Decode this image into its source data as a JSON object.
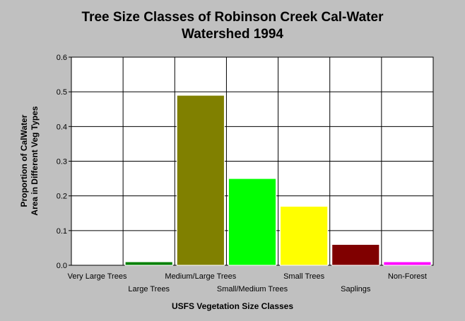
{
  "chart_data": {
    "type": "bar",
    "title_line1": "Tree Size Classes of Robinson Creek Cal-Water",
    "title_line2": "Watershed 1994",
    "xlabel": "USFS Vegetation Size Classes",
    "ylabel_line1": "Proportion of CalWater",
    "ylabel_line2": "Area in Different Veg Types",
    "ylim": [
      0,
      0.6
    ],
    "yticks": [
      "0.0",
      "0.1",
      "0.2",
      "0.3",
      "0.4",
      "0.5",
      "0.6"
    ],
    "grid": true,
    "categories": [
      "Very Large Trees",
      "Large Trees",
      "Medium/Large Trees",
      "Small/Medium Trees",
      "Small Trees",
      "Saplings",
      "Non-Forest"
    ],
    "values": [
      0.0,
      0.01,
      0.49,
      0.25,
      0.17,
      0.06,
      0.01
    ],
    "colors": [
      "#008000",
      "#008000",
      "#808000",
      "#00ff00",
      "#ffff00",
      "#800000",
      "#ff00ff"
    ]
  }
}
